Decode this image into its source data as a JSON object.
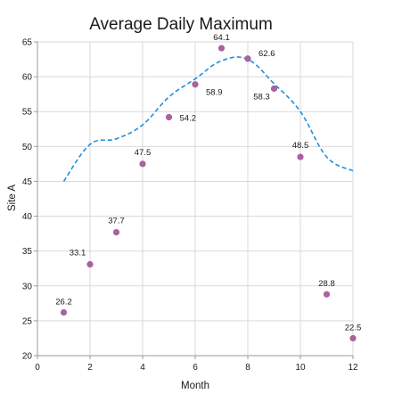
{
  "chart_data": {
    "type": "scatter",
    "title": "Average Daily Maximum",
    "xlabel": "Month",
    "ylabel": "Site A",
    "xlim": [
      0,
      12
    ],
    "ylim": [
      20,
      65
    ],
    "xticks": [
      0,
      2,
      4,
      6,
      8,
      10,
      12
    ],
    "yticks": [
      20,
      25,
      30,
      35,
      40,
      45,
      50,
      55,
      60,
      65
    ],
    "grid": true,
    "series": [
      {
        "type": "scatter",
        "color": "#a8629e",
        "x": [
          1,
          2,
          3,
          4,
          5,
          6,
          7,
          8,
          9,
          10,
          11,
          12
        ],
        "y": [
          26.2,
          33.1,
          37.7,
          47.5,
          54.2,
          58.9,
          64.1,
          62.6,
          58.3,
          48.5,
          28.8,
          22.5
        ],
        "labels": [
          "26.2",
          "33.1",
          "37.7",
          "47.5",
          "54.2",
          "58.9",
          "64.1",
          "62.6",
          "58.3",
          "48.5",
          "28.8",
          "22.5"
        ]
      },
      {
        "type": "line",
        "style": "dashed",
        "color": "#1f8fe0",
        "x": [
          1,
          2,
          3,
          4,
          5,
          6,
          7,
          8,
          9,
          10,
          11,
          12
        ],
        "y": [
          45.0,
          50.3,
          51.1,
          53.1,
          57.1,
          59.7,
          62.3,
          62.5,
          59.0,
          55.0,
          48.5,
          46.5
        ]
      }
    ]
  }
}
